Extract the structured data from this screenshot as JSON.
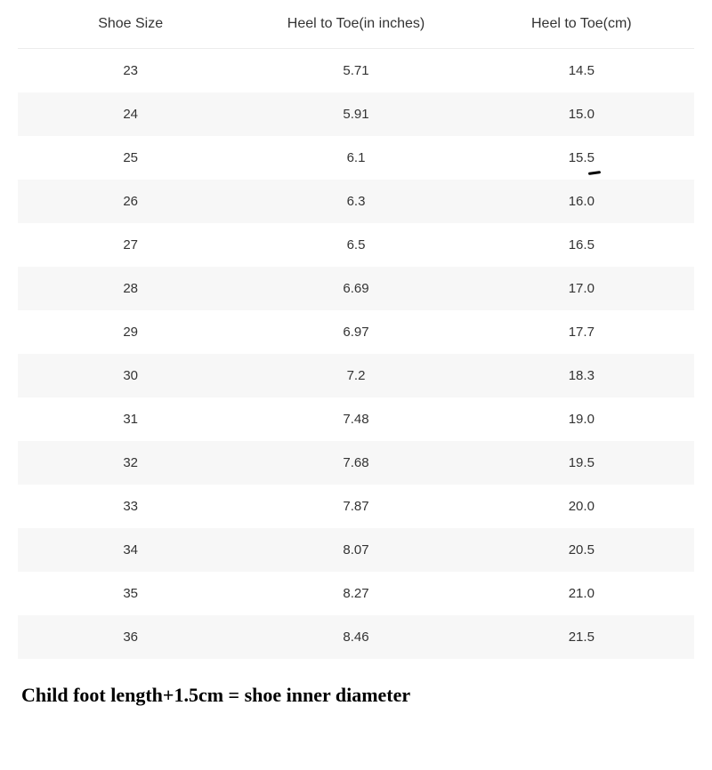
{
  "table": {
    "columns": [
      "Shoe Size",
      "Heel to Toe(in inches)",
      "Heel to Toe(cm)"
    ],
    "rows": [
      [
        "23",
        "5.71",
        "14.5"
      ],
      [
        "24",
        "5.91",
        "15.0"
      ],
      [
        "25",
        "6.1",
        "15.5"
      ],
      [
        "26",
        "6.3",
        "16.0"
      ],
      [
        "27",
        "6.5",
        "16.5"
      ],
      [
        "28",
        "6.69",
        "17.0"
      ],
      [
        "29",
        "6.97",
        "17.7"
      ],
      [
        "30",
        "7.2",
        "18.3"
      ],
      [
        "31",
        "7.48",
        "19.0"
      ],
      [
        "32",
        "7.68",
        "19.5"
      ],
      [
        "33",
        "7.87",
        "20.0"
      ],
      [
        "34",
        "8.07",
        "20.5"
      ],
      [
        "35",
        "8.27",
        "21.0"
      ],
      [
        "36",
        "8.46",
        "21.5"
      ]
    ],
    "marked_cell": {
      "row": 2,
      "col": 2
    },
    "header_fontsize": 16,
    "cell_fontsize": 15,
    "row_bg_odd": "#ffffff",
    "row_bg_even": "#f7f7f7",
    "text_color": "#333333",
    "border_color": "#ececec"
  },
  "caption": {
    "text": "Child foot length+1.5cm = shoe inner diameter",
    "fontsize": 22,
    "font_family": "Georgia, serif",
    "font_weight": "bold",
    "color": "#000000"
  }
}
